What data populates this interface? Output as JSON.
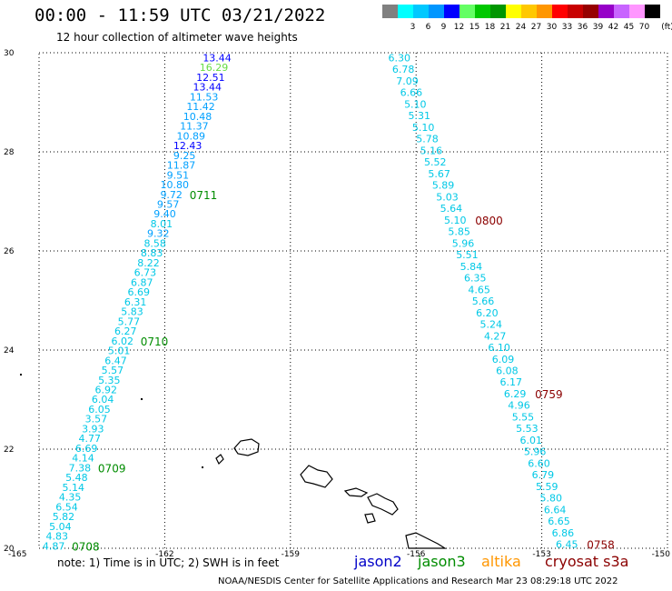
{
  "title": "00:00 - 11:59 UTC 03/21/2022",
  "subtitle": "12 hour collection of altimeter wave heights",
  "legend": {
    "unit": "(ft)",
    "items": [
      {
        "label": "",
        "color": "#808080"
      },
      {
        "label": "3",
        "color": "#00ffff"
      },
      {
        "label": "6",
        "color": "#00c8ff"
      },
      {
        "label": "9",
        "color": "#0096ff"
      },
      {
        "label": "12",
        "color": "#0000ff"
      },
      {
        "label": "15",
        "color": "#64ff64"
      },
      {
        "label": "18",
        "color": "#00c800"
      },
      {
        "label": "21",
        "color": "#009600"
      },
      {
        "label": "24",
        "color": "#ffff00"
      },
      {
        "label": "27",
        "color": "#ffc800"
      },
      {
        "label": "30",
        "color": "#ff9600"
      },
      {
        "label": "33",
        "color": "#ff0000"
      },
      {
        "label": "36",
        "color": "#c80000"
      },
      {
        "label": "39",
        "color": "#960000"
      },
      {
        "label": "42",
        "color": "#9600c8"
      },
      {
        "label": "45",
        "color": "#c864ff"
      },
      {
        "label": "70",
        "color": "#ff96ff"
      },
      {
        "label": "",
        "color": "#000000"
      }
    ]
  },
  "axes": {
    "lon_min": -165,
    "lon_max": -150,
    "lat_min": 20,
    "lat_max": 30,
    "x_ticks": [
      "-165",
      "-162",
      "-159",
      "-156",
      "-153",
      "-150"
    ],
    "y_ticks": [
      "20",
      "22",
      "24",
      "26",
      "28",
      "30"
    ]
  },
  "colors": {
    "jason2": "#0000c8",
    "jason3": "#008c00",
    "altika": "#ff9600",
    "cryosat": "#8b0000",
    "light_green": "#66dd44",
    "cyan": "#00c8e6"
  },
  "left_track": {
    "values": [
      "13.44",
      "16.29",
      "12.51",
      "13.44",
      "11.53",
      "11.42",
      "10.48",
      "11.37",
      "10.89",
      "12.43",
      "9.25",
      "11.87",
      "9.51",
      "10.80",
      "9.72",
      "9.57",
      "9.40",
      "8.01",
      "9.32",
      "8.58",
      "8.83",
      "8.22",
      "6.73",
      "6.87",
      "6.69",
      "6.31",
      "5.83",
      "5.77",
      "6.27",
      "6.02",
      "5.01",
      "6.47",
      "5.57",
      "5.35",
      "6.92",
      "6.04",
      "6.05",
      "3.57",
      "3.93",
      "4.77",
      "6.69",
      "4.14",
      "7.38",
      "5.48",
      "5.14",
      "4.35",
      "6.54",
      "5.82",
      "5.04",
      "4.83",
      "4.87"
    ],
    "time_labels": [
      {
        "text": "0711",
        "index": 14
      },
      {
        "text": "0710",
        "index": 29
      },
      {
        "text": "0709",
        "index": 42
      },
      {
        "text": "0708",
        "index": 50
      }
    ]
  },
  "right_track": {
    "values": [
      "6.30",
      "6.78",
      "7.09",
      "6.66",
      "5.10",
      "5.31",
      "5.10",
      "5.78",
      "5.16",
      "5.52",
      "5.67",
      "5.89",
      "5.03",
      "5.64",
      "5.10",
      "5.85",
      "5.96",
      "5.51",
      "5.84",
      "6.35",
      "4.65",
      "5.66",
      "6.20",
      "5.24",
      "4.27",
      "6.10",
      "6.09",
      "6.08",
      "6.17",
      "6.29",
      "4.96",
      "5.55",
      "5.53",
      "6.01",
      "5.96",
      "6.60",
      "6.79",
      "5.59",
      "5.80",
      "6.64",
      "6.65",
      "6.86",
      "6.45"
    ],
    "time_labels": [
      {
        "text": "0800",
        "index": 14
      },
      {
        "text": "0759",
        "index": 29
      },
      {
        "text": "0758",
        "index": 42
      }
    ]
  },
  "note": "note: 1) Time is in UTC; 2) SWH is in feet",
  "missions": [
    "jason2",
    "jason3",
    "altika",
    "cryosat s3a"
  ],
  "credit": "NOAA/NESDIS Center for Satellite Applications and Research    Mar 23 08:29:18 UTC 2022"
}
